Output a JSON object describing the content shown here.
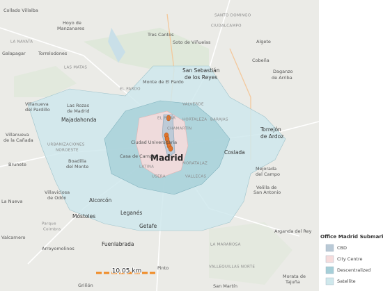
{
  "map": {
    "scale_label": "10.05 km",
    "places": [
      "Collado Villalba",
      "Hoyo de",
      "Manzanares",
      "LA NAVATA",
      "Galapagar",
      "Torrelodones",
      "Tres Cantos",
      "Soto de Viñuelas",
      "SANTO DOMINGO",
      "CIUDALCAMPO",
      "Algete",
      "Cobeña",
      "Daganzo",
      "de Arriba",
      "LAS MATAS",
      "Monte de El Pardo",
      "EL PARDO",
      "San Sebastián",
      "de los Reyes",
      "Villanueva",
      "del Pardillo",
      "Las Rozas",
      "de Madrid",
      "Majadahonda",
      "Villanueva",
      "de la Cañada",
      "URBANIZACIONES",
      "NOROESTE",
      "Brunete",
      "Boadilla",
      "del Monte",
      "Villaviciosa",
      "de Odón",
      "Alcorcón",
      "Móstoles",
      "Leganés",
      "Getafe",
      "Fuenlabrada",
      "Madrid",
      "Coslada",
      "Torrejón",
      "de Ardoz",
      "Mejorada",
      "del Campo",
      "Velilla de",
      "San Antonio",
      "Arganda del Rey",
      "Morata de",
      "Tajuña",
      "VALLEQUILLAS NORTE",
      "LA MARAÑOSA",
      "Pinto",
      "Arroyomolinos",
      "Griñón",
      "San Martín",
      "La Nueva",
      "CHAMARTÍN",
      "HORTALEZA",
      "BARAJAS",
      "MORATALAZ",
      "VALLECAS",
      "USERA",
      "LATINA",
      "Casa de Campo",
      "Ciudad Universitaria",
      "EL PILAR",
      "VALVERDE",
      "Valcarnero",
      "Parque",
      "Coimbra"
    ]
  },
  "legend": {
    "title": "Office Madrid Submarkets",
    "items": [
      {
        "label": "CBD",
        "color": "#b9c9d6"
      },
      {
        "label": "City Centre",
        "color": "#f6dcdc"
      },
      {
        "label": "Descentralized",
        "color": "#a6cfd8"
      },
      {
        "label": "Satellite",
        "color": "#cfe8ec"
      }
    ]
  }
}
